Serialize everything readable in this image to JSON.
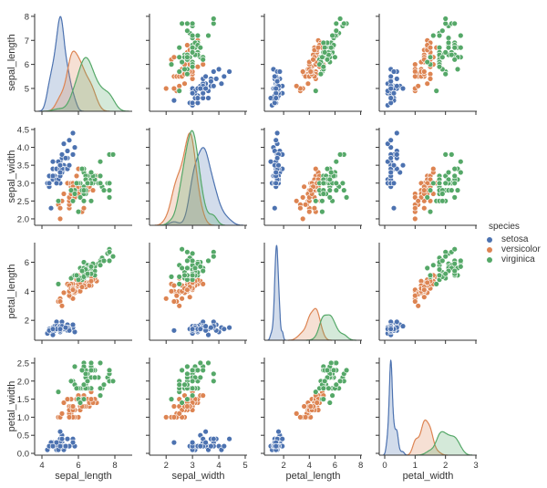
{
  "chart_data": {
    "type": "pairplot",
    "diagonal": "kde",
    "offdiagonal": "scatter",
    "hue": "species",
    "grid": false,
    "legend_placement": "right",
    "variables": [
      {
        "name": "sepal_length",
        "xlim": [
          3.6,
          8.95
        ],
        "ylim": [
          4.05,
          8.11
        ],
        "x_ticks": [
          4,
          6,
          8
        ],
        "x_tick_labels": [
          "4",
          "6",
          "8"
        ],
        "y_ticks": [
          5,
          6,
          7,
          8
        ],
        "y_tick_labels": [
          "5",
          "6",
          "7",
          "8"
        ]
      },
      {
        "name": "sepal_width",
        "xlim": [
          1.37,
          5.07
        ],
        "ylim": [
          1.82,
          4.55
        ],
        "x_ticks": [
          2,
          3,
          4,
          5
        ],
        "x_tick_labels": [
          "2",
          "3",
          "4",
          "5"
        ],
        "y_ticks": [
          2.0,
          2.5,
          3.0,
          3.5,
          4.0,
          4.5
        ],
        "y_tick_labels": [
          "2.0",
          "2.5",
          "3.0",
          "3.5",
          "4.0",
          "4.5"
        ]
      },
      {
        "name": "petal_length",
        "xlim": [
          0.5,
          8.1
        ],
        "ylim": [
          0.63,
          7.35
        ],
        "x_ticks": [
          2,
          4,
          6,
          8
        ],
        "x_tick_labels": [
          "2",
          "4",
          "6",
          "8"
        ],
        "y_ticks": [
          2,
          4,
          6
        ],
        "y_tick_labels": [
          "2",
          "4",
          "6"
        ]
      },
      {
        "name": "petal_width",
        "xlim": [
          -0.18,
          3.03
        ],
        "ylim": [
          -0.05,
          2.65
        ],
        "x_ticks": [
          0,
          1,
          2,
          3
        ],
        "x_tick_labels": [
          "0",
          "1",
          "2",
          "3"
        ],
        "y_ticks": [
          0.0,
          0.5,
          1.0,
          1.5,
          2.0,
          2.5
        ],
        "y_tick_labels": [
          "0.0",
          "0.5",
          "1.0",
          "1.5",
          "2.0",
          "2.5"
        ]
      }
    ],
    "legend": {
      "title": "species"
    },
    "series": [
      {
        "name": "setosa",
        "color": "#4c72b0",
        "points": [
          [
            5.1,
            3.5,
            1.4,
            0.2
          ],
          [
            4.9,
            3.0,
            1.4,
            0.2
          ],
          [
            4.7,
            3.2,
            1.3,
            0.2
          ],
          [
            4.6,
            3.1,
            1.5,
            0.2
          ],
          [
            5.0,
            3.6,
            1.4,
            0.2
          ],
          [
            5.4,
            3.9,
            1.7,
            0.4
          ],
          [
            4.6,
            3.4,
            1.4,
            0.3
          ],
          [
            5.0,
            3.4,
            1.5,
            0.2
          ],
          [
            4.4,
            2.9,
            1.4,
            0.2
          ],
          [
            4.9,
            3.1,
            1.5,
            0.1
          ],
          [
            5.4,
            3.7,
            1.5,
            0.2
          ],
          [
            4.8,
            3.4,
            1.6,
            0.2
          ],
          [
            4.8,
            3.0,
            1.4,
            0.1
          ],
          [
            4.3,
            3.0,
            1.1,
            0.1
          ],
          [
            5.8,
            4.0,
            1.2,
            0.2
          ],
          [
            5.7,
            4.4,
            1.5,
            0.4
          ],
          [
            5.4,
            3.9,
            1.3,
            0.4
          ],
          [
            5.1,
            3.5,
            1.4,
            0.3
          ],
          [
            5.7,
            3.8,
            1.7,
            0.3
          ],
          [
            5.1,
            3.8,
            1.5,
            0.3
          ],
          [
            5.4,
            3.4,
            1.7,
            0.2
          ],
          [
            5.1,
            3.7,
            1.5,
            0.4
          ],
          [
            4.6,
            3.6,
            1.0,
            0.2
          ],
          [
            5.1,
            3.3,
            1.7,
            0.5
          ],
          [
            4.8,
            3.4,
            1.9,
            0.2
          ],
          [
            5.0,
            3.0,
            1.6,
            0.2
          ],
          [
            5.0,
            3.4,
            1.6,
            0.4
          ],
          [
            5.2,
            3.5,
            1.5,
            0.2
          ],
          [
            5.2,
            3.4,
            1.4,
            0.2
          ],
          [
            4.7,
            3.2,
            1.6,
            0.2
          ],
          [
            4.8,
            3.1,
            1.6,
            0.2
          ],
          [
            5.4,
            3.4,
            1.5,
            0.4
          ],
          [
            5.2,
            4.1,
            1.5,
            0.1
          ],
          [
            5.5,
            4.2,
            1.4,
            0.2
          ],
          [
            4.9,
            3.1,
            1.5,
            0.2
          ],
          [
            5.0,
            3.2,
            1.2,
            0.2
          ],
          [
            5.5,
            3.5,
            1.3,
            0.2
          ],
          [
            4.9,
            3.6,
            1.4,
            0.1
          ],
          [
            4.4,
            3.0,
            1.3,
            0.2
          ],
          [
            5.1,
            3.4,
            1.5,
            0.2
          ],
          [
            5.0,
            3.5,
            1.3,
            0.3
          ],
          [
            4.5,
            2.3,
            1.3,
            0.3
          ],
          [
            4.4,
            3.2,
            1.3,
            0.2
          ],
          [
            5.0,
            3.5,
            1.6,
            0.6
          ],
          [
            5.1,
            3.8,
            1.9,
            0.4
          ],
          [
            4.8,
            3.0,
            1.4,
            0.3
          ],
          [
            5.1,
            3.8,
            1.6,
            0.2
          ],
          [
            4.6,
            3.2,
            1.4,
            0.2
          ],
          [
            5.3,
            3.7,
            1.5,
            0.2
          ],
          [
            5.0,
            3.3,
            1.4,
            0.2
          ]
        ]
      },
      {
        "name": "versicolor",
        "color": "#dd8452",
        "points": [
          [
            7.0,
            3.2,
            4.7,
            1.4
          ],
          [
            6.4,
            3.2,
            4.5,
            1.5
          ],
          [
            6.9,
            3.1,
            4.9,
            1.5
          ],
          [
            5.5,
            2.3,
            4.0,
            1.3
          ],
          [
            6.5,
            2.8,
            4.6,
            1.5
          ],
          [
            5.7,
            2.8,
            4.5,
            1.3
          ],
          [
            6.3,
            3.3,
            4.7,
            1.6
          ],
          [
            4.9,
            2.4,
            3.3,
            1.0
          ],
          [
            6.6,
            2.9,
            4.6,
            1.3
          ],
          [
            5.2,
            2.7,
            3.9,
            1.4
          ],
          [
            5.0,
            2.0,
            3.5,
            1.0
          ],
          [
            5.9,
            3.0,
            4.2,
            1.5
          ],
          [
            6.0,
            2.2,
            4.0,
            1.0
          ],
          [
            6.1,
            2.9,
            4.7,
            1.4
          ],
          [
            5.6,
            2.9,
            3.6,
            1.3
          ],
          [
            6.7,
            3.1,
            4.4,
            1.4
          ],
          [
            5.6,
            3.0,
            4.5,
            1.5
          ],
          [
            5.8,
            2.7,
            4.1,
            1.0
          ],
          [
            6.2,
            2.2,
            4.5,
            1.5
          ],
          [
            5.6,
            2.5,
            3.9,
            1.1
          ],
          [
            5.9,
            3.2,
            4.8,
            1.8
          ],
          [
            6.1,
            2.8,
            4.0,
            1.3
          ],
          [
            6.3,
            2.5,
            4.9,
            1.5
          ],
          [
            6.1,
            2.8,
            4.7,
            1.2
          ],
          [
            6.4,
            2.9,
            4.3,
            1.3
          ],
          [
            6.6,
            3.0,
            4.4,
            1.4
          ],
          [
            6.8,
            2.8,
            4.8,
            1.4
          ],
          [
            6.7,
            3.0,
            5.0,
            1.7
          ],
          [
            6.0,
            2.9,
            4.5,
            1.5
          ],
          [
            5.7,
            2.6,
            3.5,
            1.0
          ],
          [
            5.5,
            2.4,
            3.8,
            1.1
          ],
          [
            5.5,
            2.4,
            3.7,
            1.0
          ],
          [
            5.8,
            2.7,
            3.9,
            1.2
          ],
          [
            6.0,
            2.7,
            5.1,
            1.6
          ],
          [
            5.4,
            3.0,
            4.5,
            1.5
          ],
          [
            6.0,
            3.4,
            4.5,
            1.6
          ],
          [
            6.7,
            3.1,
            4.7,
            1.5
          ],
          [
            6.3,
            2.3,
            4.4,
            1.3
          ],
          [
            5.6,
            3.0,
            4.1,
            1.3
          ],
          [
            5.5,
            2.5,
            4.0,
            1.3
          ],
          [
            5.5,
            2.6,
            4.4,
            1.2
          ],
          [
            6.1,
            3.0,
            4.6,
            1.4
          ],
          [
            5.8,
            2.6,
            4.0,
            1.2
          ],
          [
            5.0,
            2.3,
            3.3,
            1.0
          ],
          [
            5.6,
            2.7,
            4.2,
            1.3
          ],
          [
            5.7,
            3.0,
            4.2,
            1.2
          ],
          [
            5.7,
            2.9,
            4.2,
            1.3
          ],
          [
            6.2,
            2.9,
            4.3,
            1.3
          ],
          [
            5.1,
            2.5,
            3.0,
            1.1
          ],
          [
            5.7,
            2.8,
            4.1,
            1.3
          ]
        ]
      },
      {
        "name": "virginica",
        "color": "#55a868",
        "points": [
          [
            6.3,
            3.3,
            6.0,
            2.5
          ],
          [
            5.8,
            2.7,
            5.1,
            1.9
          ],
          [
            7.1,
            3.0,
            5.9,
            2.1
          ],
          [
            6.3,
            2.9,
            5.6,
            1.8
          ],
          [
            6.5,
            3.0,
            5.8,
            2.2
          ],
          [
            7.6,
            3.0,
            6.6,
            2.1
          ],
          [
            4.9,
            2.5,
            4.5,
            1.7
          ],
          [
            7.3,
            2.9,
            6.3,
            1.8
          ],
          [
            6.7,
            2.5,
            5.8,
            1.8
          ],
          [
            7.2,
            3.6,
            6.1,
            2.5
          ],
          [
            6.5,
            3.2,
            5.1,
            2.0
          ],
          [
            6.4,
            2.7,
            5.3,
            1.9
          ],
          [
            6.8,
            3.0,
            5.5,
            2.1
          ],
          [
            5.7,
            2.5,
            5.0,
            2.0
          ],
          [
            5.8,
            2.8,
            5.1,
            2.4
          ],
          [
            6.4,
            3.2,
            5.3,
            2.3
          ],
          [
            6.5,
            3.0,
            5.5,
            1.8
          ],
          [
            7.7,
            3.8,
            6.7,
            2.2
          ],
          [
            7.7,
            2.6,
            6.9,
            2.3
          ],
          [
            6.0,
            2.2,
            5.0,
            1.5
          ],
          [
            6.9,
            3.2,
            5.7,
            2.3
          ],
          [
            5.6,
            2.8,
            4.9,
            2.0
          ],
          [
            7.7,
            2.8,
            6.7,
            2.0
          ],
          [
            6.3,
            2.7,
            4.9,
            1.8
          ],
          [
            6.7,
            3.3,
            5.7,
            2.1
          ],
          [
            7.2,
            3.2,
            6.0,
            1.8
          ],
          [
            6.2,
            2.8,
            4.8,
            1.8
          ],
          [
            6.1,
            3.0,
            4.9,
            1.8
          ],
          [
            6.4,
            2.8,
            5.6,
            2.1
          ],
          [
            7.2,
            3.0,
            5.8,
            1.6
          ],
          [
            7.4,
            2.8,
            6.1,
            1.9
          ],
          [
            7.9,
            3.8,
            6.4,
            2.0
          ],
          [
            6.4,
            2.8,
            5.6,
            2.2
          ],
          [
            6.3,
            2.8,
            5.1,
            1.5
          ],
          [
            6.1,
            2.6,
            5.6,
            1.4
          ],
          [
            7.7,
            3.0,
            6.1,
            2.3
          ],
          [
            6.3,
            3.4,
            5.6,
            2.4
          ],
          [
            6.4,
            3.1,
            5.5,
            1.8
          ],
          [
            6.0,
            3.0,
            4.8,
            1.8
          ],
          [
            6.9,
            3.1,
            5.4,
            2.1
          ],
          [
            6.7,
            3.1,
            5.6,
            2.4
          ],
          [
            6.9,
            3.1,
            5.1,
            2.3
          ],
          [
            5.8,
            2.7,
            5.1,
            1.9
          ],
          [
            6.8,
            3.2,
            5.9,
            2.3
          ],
          [
            6.7,
            3.3,
            5.7,
            2.5
          ],
          [
            6.7,
            3.0,
            5.2,
            2.3
          ],
          [
            6.3,
            2.5,
            5.0,
            1.9
          ],
          [
            6.5,
            3.0,
            5.2,
            2.0
          ],
          [
            6.2,
            3.4,
            5.4,
            2.3
          ],
          [
            5.9,
            3.0,
            5.1,
            1.8
          ]
        ]
      }
    ]
  }
}
